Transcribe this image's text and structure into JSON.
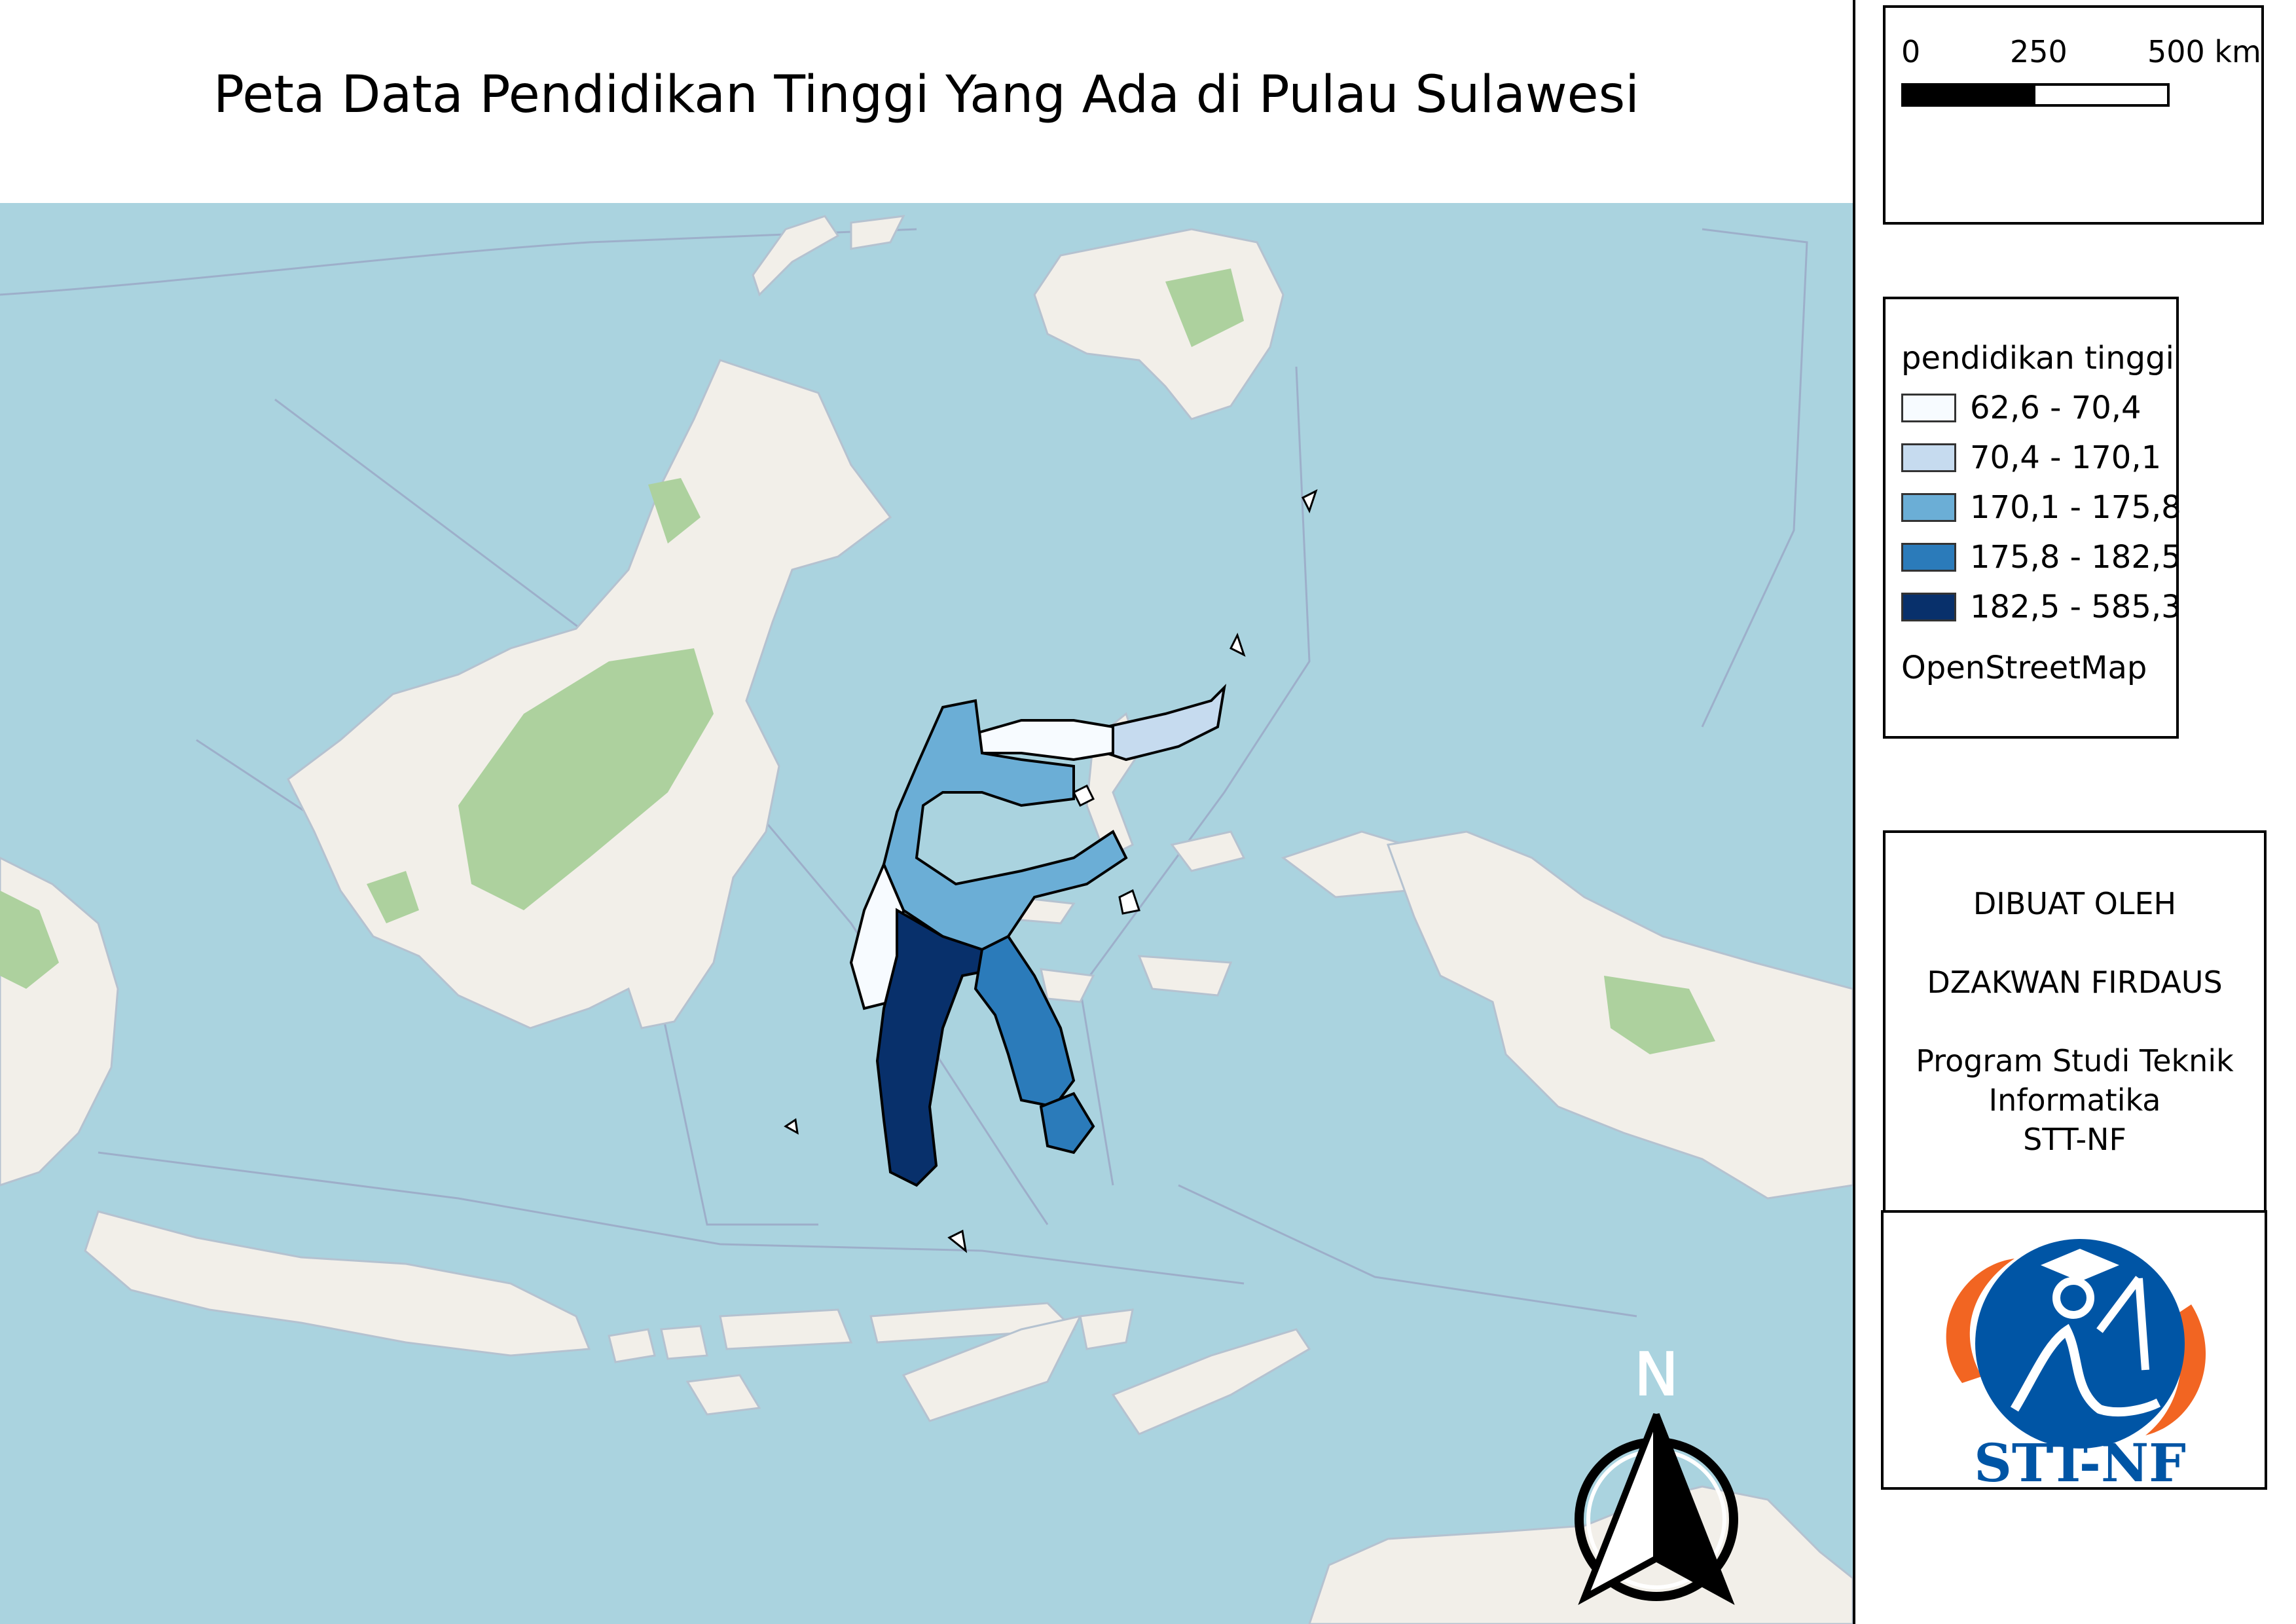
{
  "title": "Peta Data Pendidikan Tinggi Yang Ada di Pulau Sulawesi",
  "scale_bar": {
    "labels": [
      "0",
      "250",
      "500 km"
    ]
  },
  "legend": {
    "title": "pendidikan tinggi",
    "classes": [
      {
        "label": "62,6 - 70,4",
        "color": "#f7fbff"
      },
      {
        "label": "70,4 - 170,1",
        "color": "#c6dbef"
      },
      {
        "label": "170,1 - 175,8",
        "color": "#6baed6"
      },
      {
        "label": "175,8 - 182,5",
        "color": "#2b7bba"
      },
      {
        "label": "182,5 - 585,3",
        "color": "#08306b"
      }
    ],
    "source": "OpenStreetMap"
  },
  "credits": {
    "lines": [
      "DIBUAT OLEH",
      "",
      "DZAKWAN FIRDAUS",
      "",
      "Program Studi Teknik",
      "Informatika",
      "STT-NF"
    ]
  },
  "logo": {
    "text": "STT-NF",
    "primary_color": "#0055a5",
    "accent_color": "#f26522"
  },
  "north_arrow": {
    "label": "N"
  },
  "map": {
    "sea_color": "#aad3df",
    "land_color": "#f2efe9",
    "forest_color": "#add19e",
    "boundary_color": "#000000"
  }
}
